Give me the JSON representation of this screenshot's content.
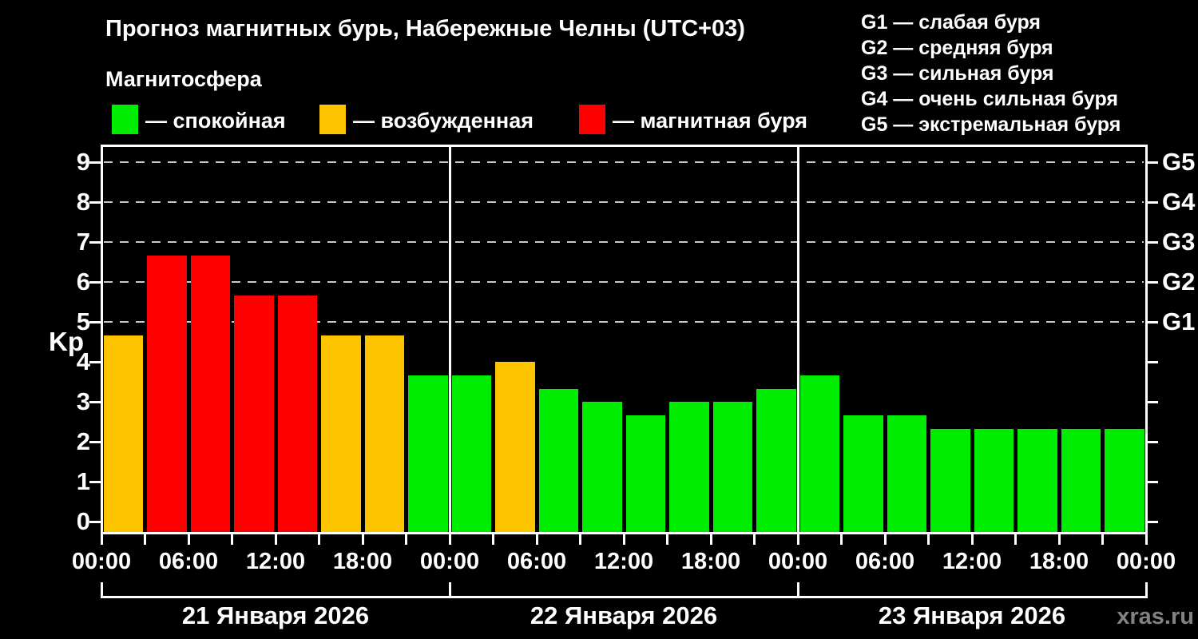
{
  "header": {
    "title": "Прогноз магнитных бурь, Набережные Челны (UTC+03)",
    "subtitle": "Магнитосфера"
  },
  "legend": {
    "items": [
      {
        "state": "quiet",
        "label": "— спокойная",
        "color": "#00ec00"
      },
      {
        "state": "excited",
        "label": "— возбужденная",
        "color": "#ffc400"
      },
      {
        "state": "storm",
        "label": "— магнитная буря",
        "color": "#ff0000"
      }
    ]
  },
  "storm_scale_legend": {
    "items": [
      {
        "code": "G1",
        "label": "G1 — слабая буря"
      },
      {
        "code": "G2",
        "label": "G2 — средняя буря"
      },
      {
        "code": "G3",
        "label": "G3 — сильная буря"
      },
      {
        "code": "G4",
        "label": "G4 — очень сильная буря"
      },
      {
        "code": "G5",
        "label": "G5 — экстремальная буря"
      }
    ]
  },
  "watermark": "xras.ru",
  "chart_data": {
    "type": "bar",
    "title": "Прогноз магнитных бурь, Набережные Челны (UTC+03)",
    "xlabel": "",
    "ylabel": "Kp",
    "ylim": [
      0,
      9.5
    ],
    "yticks": [
      0,
      1,
      2,
      3,
      4,
      5,
      6,
      7,
      8,
      9
    ],
    "grid": true,
    "grid_levels": [
      5,
      6,
      7,
      8,
      9
    ],
    "legend_position": "top",
    "right_axis_labels": [
      {
        "kp": 5,
        "label": "G1"
      },
      {
        "kp": 6,
        "label": "G2"
      },
      {
        "kp": 7,
        "label": "G3"
      },
      {
        "kp": 8,
        "label": "G4"
      },
      {
        "kp": 9,
        "label": "G5"
      }
    ],
    "x_tick_labels": [
      "00:00",
      "06:00",
      "12:00",
      "18:00",
      "00:00",
      "06:00",
      "12:00",
      "18:00",
      "00:00",
      "06:00",
      "12:00",
      "18:00",
      "00:00"
    ],
    "bar_interval_hours": 3,
    "state_colors": {
      "quiet": "#00ec00",
      "excited": "#ffc400",
      "storm": "#ff0000"
    },
    "days": [
      {
        "date": "21 Января 2026",
        "bars": [
          {
            "time": "00:00",
            "kp": 4.67,
            "state": "excited"
          },
          {
            "time": "03:00",
            "kp": 6.67,
            "state": "storm"
          },
          {
            "time": "06:00",
            "kp": 6.67,
            "state": "storm"
          },
          {
            "time": "09:00",
            "kp": 5.67,
            "state": "storm"
          },
          {
            "time": "12:00",
            "kp": 5.67,
            "state": "storm"
          },
          {
            "time": "15:00",
            "kp": 4.67,
            "state": "excited"
          },
          {
            "time": "18:00",
            "kp": 4.67,
            "state": "excited"
          },
          {
            "time": "21:00",
            "kp": 3.67,
            "state": "quiet"
          }
        ]
      },
      {
        "date": "22 Января 2026",
        "bars": [
          {
            "time": "00:00",
            "kp": 3.67,
            "state": "quiet"
          },
          {
            "time": "03:00",
            "kp": 4.0,
            "state": "excited"
          },
          {
            "time": "06:00",
            "kp": 3.33,
            "state": "quiet"
          },
          {
            "time": "09:00",
            "kp": 3.0,
            "state": "quiet"
          },
          {
            "time": "12:00",
            "kp": 2.67,
            "state": "quiet"
          },
          {
            "time": "15:00",
            "kp": 3.0,
            "state": "quiet"
          },
          {
            "time": "18:00",
            "kp": 3.0,
            "state": "quiet"
          },
          {
            "time": "21:00",
            "kp": 3.33,
            "state": "quiet"
          }
        ]
      },
      {
        "date": "23 Января 2026",
        "bars": [
          {
            "time": "00:00",
            "kp": 3.67,
            "state": "quiet"
          },
          {
            "time": "03:00",
            "kp": 2.67,
            "state": "quiet"
          },
          {
            "time": "06:00",
            "kp": 2.67,
            "state": "quiet"
          },
          {
            "time": "09:00",
            "kp": 2.33,
            "state": "quiet"
          },
          {
            "time": "12:00",
            "kp": 2.33,
            "state": "quiet"
          },
          {
            "time": "15:00",
            "kp": 2.33,
            "state": "quiet"
          },
          {
            "time": "18:00",
            "kp": 2.33,
            "state": "quiet"
          },
          {
            "time": "21:00",
            "kp": 2.33,
            "state": "quiet"
          }
        ]
      }
    ]
  }
}
